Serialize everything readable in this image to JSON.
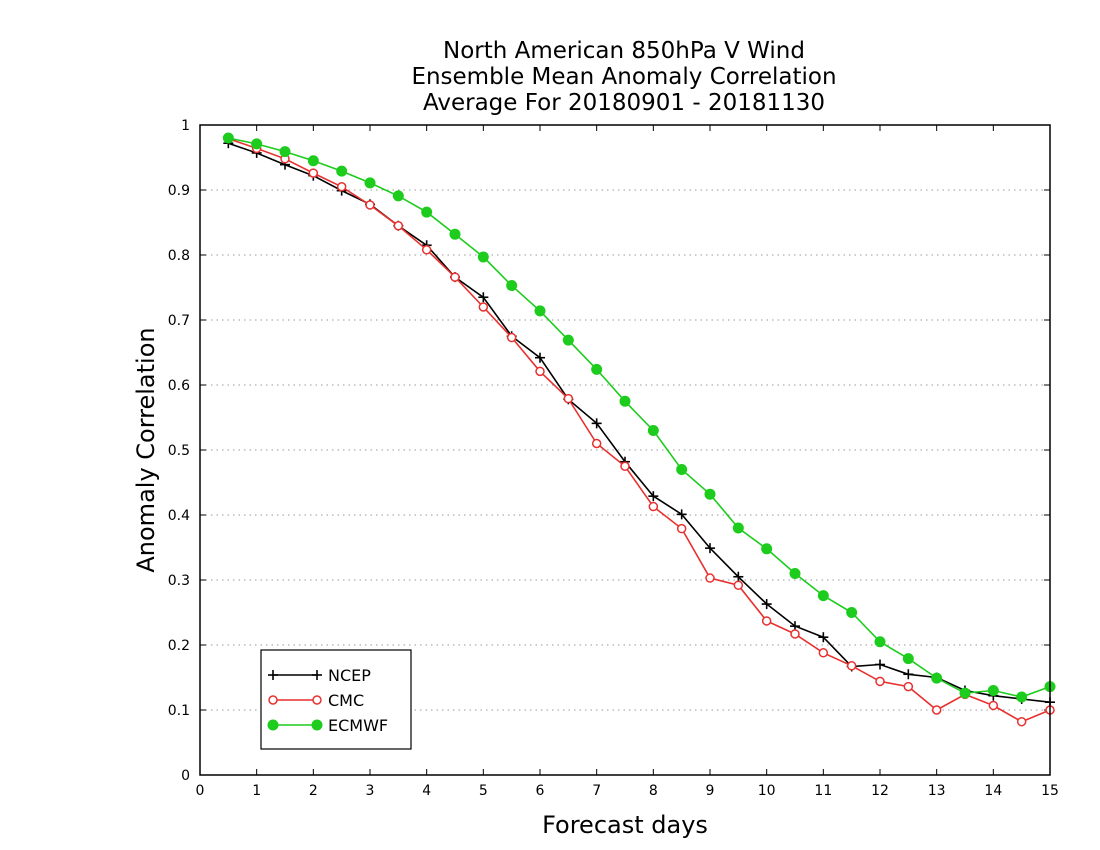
{
  "chart_data": {
    "type": "line",
    "title_lines": [
      "North American 850hPa V Wind",
      "Ensemble Mean Anomaly Correlation",
      "Average For 20180901 - 20181130"
    ],
    "xlabel": "Forecast days",
    "ylabel": "Anomaly Correlation",
    "xlim": [
      0,
      15
    ],
    "ylim": [
      0,
      1
    ],
    "xticks": [
      0,
      1,
      2,
      3,
      4,
      5,
      6,
      7,
      8,
      9,
      10,
      11,
      12,
      13,
      14,
      15
    ],
    "yticks": [
      0,
      0.1,
      0.2,
      0.3,
      0.4,
      0.5,
      0.6,
      0.7,
      0.8,
      0.9,
      1
    ],
    "ytick_labels": [
      "0",
      "0.1",
      "0.2",
      "0.3",
      "0.4",
      "0.5",
      "0.6",
      "0.7",
      "0.8",
      "0.9",
      "1"
    ],
    "grid": "horizontal dotted",
    "legend_position": "bottom-left",
    "x": [
      0.5,
      1,
      1.5,
      2,
      2.5,
      3,
      3.5,
      4,
      4.5,
      5,
      5.5,
      6,
      6.5,
      7,
      7.5,
      8,
      8.5,
      9,
      9.5,
      10,
      10.5,
      11,
      11.5,
      12,
      12.5,
      13,
      13.5,
      14,
      14.5,
      15
    ],
    "series": [
      {
        "name": "NCEP",
        "color": "#000000",
        "marker": "plus",
        "values": [
          0.972,
          0.957,
          0.939,
          0.922,
          0.899,
          0.878,
          0.845,
          0.815,
          0.766,
          0.735,
          0.675,
          0.642,
          0.578,
          0.541,
          0.482,
          0.429,
          0.401,
          0.349,
          0.305,
          0.263,
          0.229,
          0.212,
          0.167,
          0.17,
          0.155,
          0.15,
          0.13,
          0.122,
          0.117,
          0.112
        ]
      },
      {
        "name": "CMC",
        "color": "#e8312f",
        "marker": "open-circle",
        "values": [
          0.979,
          0.964,
          0.948,
          0.926,
          0.905,
          0.877,
          0.845,
          0.808,
          0.766,
          0.72,
          0.673,
          0.621,
          0.579,
          0.51,
          0.475,
          0.413,
          0.379,
          0.303,
          0.292,
          0.237,
          0.217,
          0.188,
          0.168,
          0.144,
          0.136,
          0.1,
          0.124,
          0.107,
          0.082,
          0.1
        ]
      },
      {
        "name": "ECMWF",
        "color": "#1dcc1d",
        "marker": "filled-circle",
        "values": [
          0.98,
          0.971,
          0.959,
          0.945,
          0.929,
          0.911,
          0.891,
          0.866,
          0.832,
          0.797,
          0.753,
          0.714,
          0.669,
          0.624,
          0.575,
          0.53,
          0.47,
          0.432,
          0.38,
          0.348,
          0.31,
          0.276,
          0.25,
          0.205,
          0.179,
          0.149,
          0.126,
          0.13,
          0.12,
          0.136
        ]
      }
    ]
  }
}
